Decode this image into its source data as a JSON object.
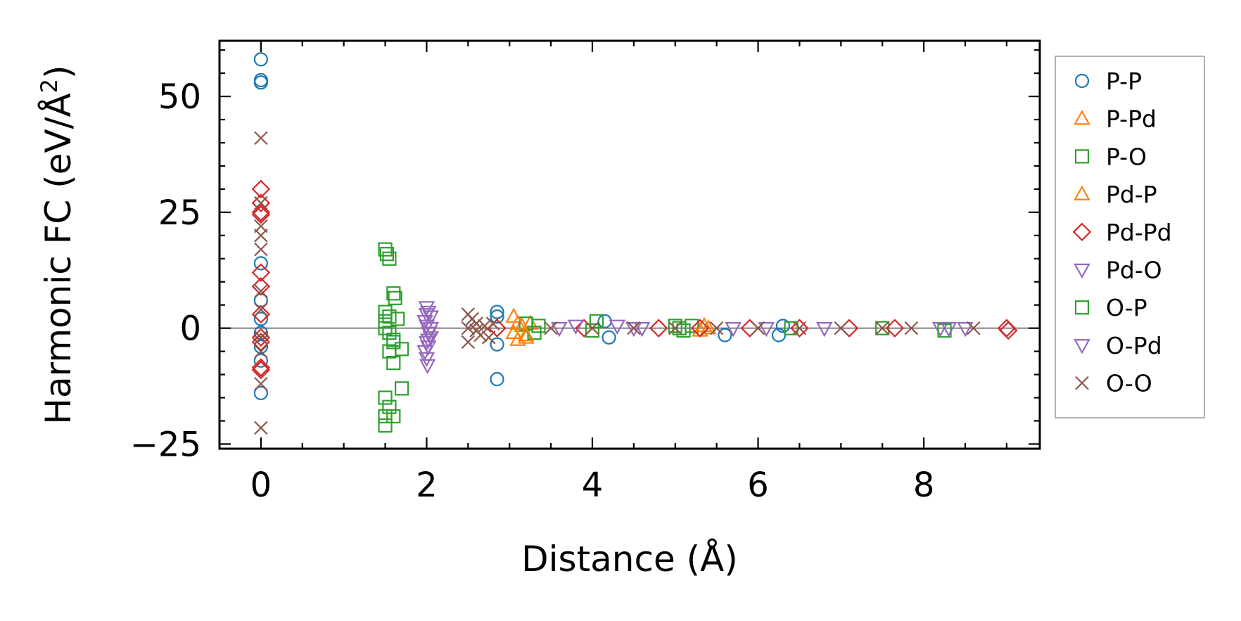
{
  "chart_data": {
    "type": "scatter",
    "xlabel": "Distance (Å)",
    "ylabel_main": "Harmonic FC (eV/Å",
    "ylabel_sup": "2",
    "ylabel_close": ")",
    "xlim": [
      -0.5,
      9.4
    ],
    "ylim": [
      -26,
      62
    ],
    "xticks": [
      0,
      2,
      4,
      6,
      8
    ],
    "xtick_labels": [
      "0",
      "2",
      "4",
      "6",
      "8"
    ],
    "yticks": [
      -25,
      0,
      25,
      50
    ],
    "ytick_labels": [
      "−25",
      "0",
      "25",
      "50"
    ],
    "zero_line": true,
    "grid": false,
    "legend_position": "outside-right",
    "series": [
      {
        "name": "P-P",
        "marker": "circle",
        "color": "#1f77b4",
        "points": [
          [
            0,
            58
          ],
          [
            0,
            53.5
          ],
          [
            0,
            53
          ],
          [
            0,
            14
          ],
          [
            0,
            6
          ],
          [
            0,
            2
          ],
          [
            0,
            -1
          ],
          [
            0,
            -4
          ],
          [
            0,
            -7
          ],
          [
            0,
            -14
          ],
          [
            2.85,
            3.5
          ],
          [
            2.85,
            2.5
          ],
          [
            2.85,
            -3.5
          ],
          [
            2.85,
            -11
          ],
          [
            4.15,
            1.5
          ],
          [
            4.2,
            -2
          ],
          [
            5.6,
            -1.5
          ],
          [
            6.25,
            -1.5
          ],
          [
            6.3,
            0.5
          ]
        ]
      },
      {
        "name": "P-Pd",
        "marker": "triangle-up",
        "color": "#ff7f0e",
        "points": [
          [
            3.05,
            2.5
          ],
          [
            3.05,
            -1
          ],
          [
            3.1,
            -2.5
          ],
          [
            3.15,
            0.5
          ],
          [
            3.2,
            -2
          ],
          [
            3.25,
            1
          ],
          [
            5.3,
            -0.5
          ],
          [
            5.4,
            0
          ]
        ]
      },
      {
        "name": "P-O",
        "marker": "square",
        "color": "#2ca02c",
        "points": [
          [
            1.5,
            17
          ],
          [
            1.52,
            16
          ],
          [
            1.55,
            15
          ],
          [
            1.5,
            3.5
          ],
          [
            1.55,
            2.5
          ],
          [
            1.6,
            7.5
          ],
          [
            1.62,
            6.5
          ],
          [
            1.5,
            0
          ],
          [
            1.6,
            -2.5
          ],
          [
            1.55,
            -5
          ],
          [
            1.6,
            -7.5
          ],
          [
            1.7,
            -4.5
          ],
          [
            1.5,
            -15
          ],
          [
            1.55,
            -17
          ],
          [
            1.5,
            -19
          ],
          [
            1.6,
            -19
          ],
          [
            1.5,
            -21
          ],
          [
            1.7,
            -13
          ],
          [
            3.2,
            1
          ],
          [
            3.3,
            -1
          ],
          [
            3.35,
            0.5
          ],
          [
            4.05,
            1.5
          ],
          [
            5.0,
            0.5
          ],
          [
            5.1,
            -0.5
          ],
          [
            5.2,
            0.5
          ],
          [
            7.5,
            0
          ]
        ]
      },
      {
        "name": "Pd-P",
        "marker": "triangle-up",
        "color": "#ff7f0e",
        "points": [
          [
            3.1,
            1
          ],
          [
            3.2,
            -1.5
          ],
          [
            5.35,
            0.5
          ]
        ]
      },
      {
        "name": "Pd-Pd",
        "marker": "diamond",
        "color": "#d62728",
        "points": [
          [
            0,
            30
          ],
          [
            0,
            27
          ],
          [
            0,
            25
          ],
          [
            0,
            24.5
          ],
          [
            0,
            12
          ],
          [
            0,
            9
          ],
          [
            0,
            3
          ],
          [
            0,
            -2
          ],
          [
            0,
            -3
          ],
          [
            0,
            -8.5
          ],
          [
            0,
            -9
          ],
          [
            2.85,
            0
          ],
          [
            3.9,
            0
          ],
          [
            4.8,
            0
          ],
          [
            5.3,
            0
          ],
          [
            5.9,
            0
          ],
          [
            6.5,
            0
          ],
          [
            7.1,
            0
          ],
          [
            7.65,
            0
          ],
          [
            9.0,
            0
          ],
          [
            9.02,
            -0.5
          ]
        ]
      },
      {
        "name": "Pd-O",
        "marker": "triangle-down",
        "color": "#9467bd",
        "points": [
          [
            2.0,
            4.5
          ],
          [
            2.02,
            3.5
          ],
          [
            2.05,
            2.5
          ],
          [
            1.98,
            1.5
          ],
          [
            2.0,
            0.5
          ],
          [
            2.03,
            -1
          ],
          [
            2.05,
            -2
          ],
          [
            2.0,
            -3
          ],
          [
            2.02,
            -4
          ],
          [
            1.98,
            -5
          ],
          [
            2.0,
            -6.5
          ],
          [
            2.01,
            -8
          ],
          [
            3.6,
            0
          ],
          [
            4.3,
            0.5
          ],
          [
            4.5,
            0
          ],
          [
            5.7,
            0
          ],
          [
            6.1,
            0
          ],
          [
            6.8,
            0
          ],
          [
            8.2,
            0
          ],
          [
            8.5,
            0
          ]
        ]
      },
      {
        "name": "O-P",
        "marker": "square",
        "color": "#2ca02c",
        "points": [
          [
            1.5,
            1.5
          ],
          [
            1.55,
            -1
          ],
          [
            1.6,
            -3
          ],
          [
            1.65,
            2
          ],
          [
            4.0,
            -0.5
          ],
          [
            5.05,
            0
          ],
          [
            6.4,
            0
          ],
          [
            8.25,
            -0.5
          ]
        ]
      },
      {
        "name": "O-Pd",
        "marker": "triangle-down",
        "color": "#9467bd",
        "points": [
          [
            2.0,
            3
          ],
          [
            2.05,
            0
          ],
          [
            2.02,
            -2.5
          ],
          [
            3.8,
            0.5
          ],
          [
            4.6,
            0
          ],
          [
            8.3,
            0
          ]
        ]
      },
      {
        "name": "O-O",
        "marker": "x",
        "color": "#8c564b",
        "points": [
          [
            0,
            41
          ],
          [
            0,
            27
          ],
          [
            0,
            22
          ],
          [
            0,
            20
          ],
          [
            0,
            17
          ],
          [
            0,
            8
          ],
          [
            0,
            4
          ],
          [
            0,
            -2
          ],
          [
            0,
            -5
          ],
          [
            0,
            -12
          ],
          [
            0,
            -21.5
          ],
          [
            2.5,
            3
          ],
          [
            2.5,
            -3
          ],
          [
            2.55,
            2
          ],
          [
            2.6,
            1
          ],
          [
            2.65,
            -1.5
          ],
          [
            2.7,
            0.5
          ],
          [
            2.75,
            -2
          ],
          [
            2.8,
            1
          ],
          [
            2.5,
            0
          ],
          [
            2.6,
            -0.5
          ],
          [
            3.5,
            0
          ],
          [
            4.0,
            0
          ],
          [
            4.5,
            0
          ],
          [
            5.0,
            0
          ],
          [
            5.5,
            0
          ],
          [
            6.0,
            0
          ],
          [
            6.5,
            0
          ],
          [
            7.0,
            0
          ],
          [
            7.5,
            0
          ],
          [
            7.85,
            0
          ],
          [
            8.6,
            0
          ]
        ]
      }
    ]
  }
}
